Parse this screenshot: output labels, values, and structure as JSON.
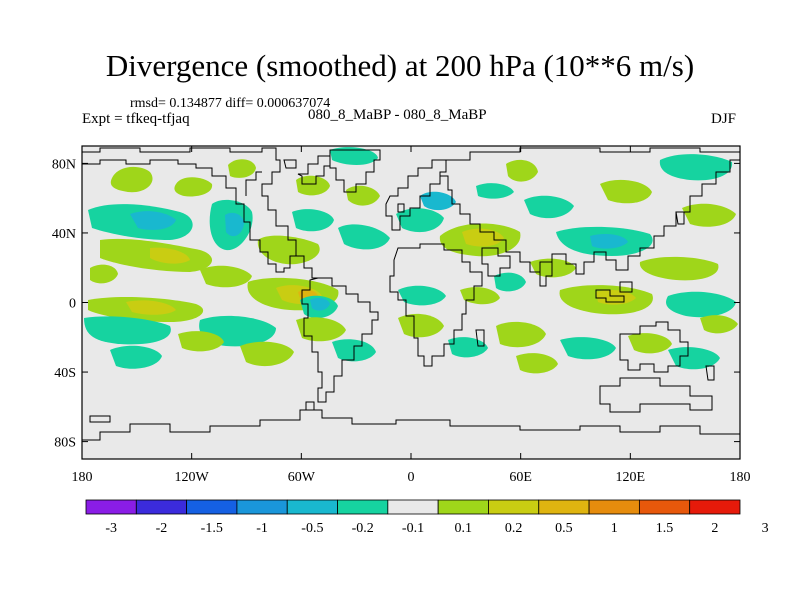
{
  "title": "Divergence (smoothed) at 200 hPa (10**6 m/s)",
  "stats_line": "rmsd= 0.134877 diff= 0.000637074",
  "expt_line": "Expt = tfkeq-tfjaq",
  "case_line": "080_8_MaBP - 080_8_MaBP",
  "season": "DJF",
  "y_ticks": [
    {
      "label": "80N",
      "lat": 80
    },
    {
      "label": "40N",
      "lat": 40
    },
    {
      "label": "0",
      "lat": 0
    },
    {
      "label": "40S",
      "lat": -40
    },
    {
      "label": "80S",
      "lat": -80
    }
  ],
  "x_ticks": [
    {
      "label": "180",
      "lon": -180
    },
    {
      "label": "120W",
      "lon": -120
    },
    {
      "label": "60W",
      "lon": -60
    },
    {
      "label": "0",
      "lon": 0
    },
    {
      "label": "60E",
      "lon": 60
    },
    {
      "label": "120E",
      "lon": 120
    },
    {
      "label": "180",
      "lon": 180
    }
  ],
  "colorbar": {
    "colors": [
      "#8a1de6",
      "#3b2bdc",
      "#1560e3",
      "#1a96da",
      "#19b8cf",
      "#16d3a0",
      "#e9e9e9",
      "#9fd61a",
      "#c9cd12",
      "#dfb410",
      "#e68c0d",
      "#e7580b",
      "#e61a0a"
    ],
    "labels": [
      "-3",
      "-2",
      "-1.5",
      "-1",
      "-0.5",
      "-0.2",
      "-0.1",
      "0.1",
      "0.2",
      "0.5",
      "1",
      "1.5",
      "2",
      "3"
    ]
  },
  "map": {
    "lon_range": [
      -180,
      180
    ],
    "lat_range": [
      -90,
      90
    ],
    "background": "#e9e9e9"
  }
}
